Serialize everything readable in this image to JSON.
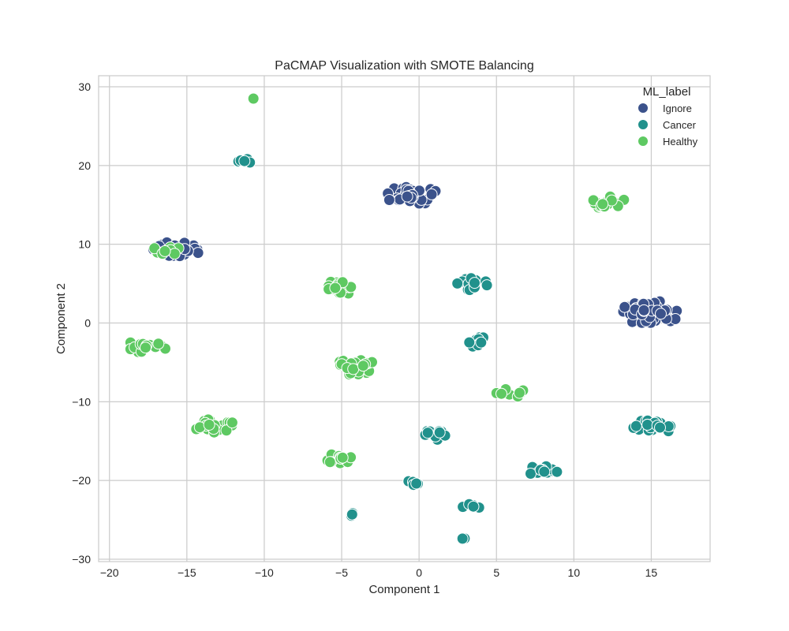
{
  "chart_data": {
    "type": "scatter",
    "title": "PaCMAP Visualization with SMOTE Balancing",
    "xlabel": "Component 1",
    "ylabel": "Component 2",
    "xlim": [
      -20.7,
      18.8
    ],
    "ylim": [
      -30.3,
      31.4
    ],
    "xticks": [
      -20,
      -15,
      -10,
      -5,
      0,
      5,
      10,
      15
    ],
    "yticks": [
      -30,
      -20,
      -10,
      0,
      10,
      20,
      30
    ],
    "xtick_labels": [
      "−20",
      "−15",
      "−10",
      "−5",
      "0",
      "5",
      "10",
      "15"
    ],
    "ytick_labels": [
      "−30",
      "−20",
      "−10",
      "0",
      "10",
      "20",
      "30"
    ],
    "grid": true,
    "legend": {
      "title": "ML_label",
      "position": "top-right",
      "entries": [
        "Ignore",
        "Cancer",
        "Healthy"
      ]
    },
    "colors": {
      "Ignore": "#3b528b",
      "Cancer": "#21918c",
      "Healthy": "#5ec962"
    },
    "series": [
      {
        "name": "Ignore",
        "clusters": [
          {
            "cx": -0.4,
            "cy": 16.2,
            "rx": 1.8,
            "ry": 1.2
          },
          {
            "cx": -15.6,
            "cy": 9.4,
            "rx": 1.6,
            "ry": 1.0
          },
          {
            "cx": 15.0,
            "cy": 1.3,
            "rx": 2.0,
            "ry": 1.5
          }
        ]
      },
      {
        "name": "Cancer",
        "clusters": [
          {
            "cx": -11.2,
            "cy": 20.8,
            "rx": 0.6,
            "ry": 0.5
          },
          {
            "cx": 3.5,
            "cy": 4.9,
            "rx": 1.1,
            "ry": 0.8
          },
          {
            "cx": 3.8,
            "cy": -2.4,
            "rx": 0.8,
            "ry": 0.7
          },
          {
            "cx": 1.2,
            "cy": -14.2,
            "rx": 1.0,
            "ry": 0.7
          },
          {
            "cx": 15.0,
            "cy": -13.2,
            "rx": 1.4,
            "ry": 0.9
          },
          {
            "cx": 8.0,
            "cy": -18.8,
            "rx": 1.0,
            "ry": 0.7
          },
          {
            "cx": -0.3,
            "cy": -20.3,
            "rx": 0.6,
            "ry": 0.5
          },
          {
            "cx": 3.4,
            "cy": -23.3,
            "rx": 0.6,
            "ry": 0.5
          },
          {
            "cx": -4.4,
            "cy": -24.3,
            "rx": 0.3,
            "ry": 0.2
          },
          {
            "cx": 2.9,
            "cy": -27.4,
            "rx": 0.2,
            "ry": 0.2
          }
        ]
      },
      {
        "name": "Healthy",
        "clusters": [
          {
            "cx": -10.7,
            "cy": 28.5,
            "rx": 0.0,
            "ry": 0.0
          },
          {
            "cx": 12.3,
            "cy": 15.3,
            "rx": 1.2,
            "ry": 0.8
          },
          {
            "cx": -16.4,
            "cy": 9.2,
            "rx": 1.0,
            "ry": 0.6
          },
          {
            "cx": -5.3,
            "cy": 4.4,
            "rx": 1.3,
            "ry": 0.9
          },
          {
            "cx": -17.5,
            "cy": -2.9,
            "rx": 1.4,
            "ry": 0.9
          },
          {
            "cx": -4.2,
            "cy": -5.6,
            "rx": 1.5,
            "ry": 1.0
          },
          {
            "cx": 6.0,
            "cy": -8.9,
            "rx": 1.0,
            "ry": 0.6
          },
          {
            "cx": -13.2,
            "cy": -13.1,
            "rx": 1.4,
            "ry": 0.9
          },
          {
            "cx": -5.3,
            "cy": -17.3,
            "rx": 1.1,
            "ry": 0.7
          }
        ]
      }
    ]
  }
}
